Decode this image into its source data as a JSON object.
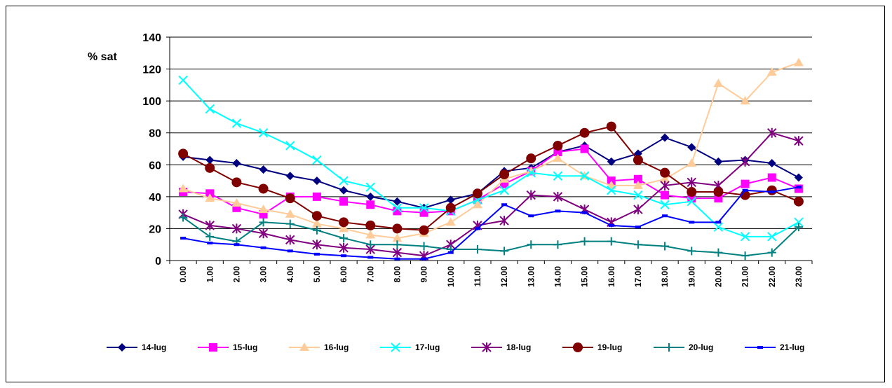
{
  "chart_data": {
    "type": "line",
    "title": "",
    "xlabel": "",
    "ylabel": "% sat",
    "ylim": [
      0,
      140
    ],
    "yticks": [
      0,
      20,
      40,
      60,
      80,
      100,
      120,
      140
    ],
    "grid": "horizontal",
    "legend_position": "bottom",
    "categories": [
      "0.00",
      "1.00",
      "2.00",
      "3.00",
      "4.00",
      "5.00",
      "6.00",
      "7.00",
      "8.00",
      "9.00",
      "10.00",
      "11.00",
      "12.00",
      "13.00",
      "14.00",
      "15.00",
      "16.00",
      "17.00",
      "18.00",
      "19.00",
      "20.00",
      "21.00",
      "22.00",
      "23.00"
    ],
    "series": [
      {
        "name": "14-lug",
        "color": "#000080",
        "marker": "diamond",
        "values": [
          65,
          63,
          61,
          57,
          53,
          50,
          44,
          40,
          37,
          33,
          38,
          42,
          56,
          58,
          68,
          72,
          62,
          67,
          77,
          71,
          62,
          63,
          61,
          52
        ]
      },
      {
        "name": "15-lug",
        "color": "#FF00FF",
        "marker": "square",
        "values": [
          43,
          42,
          33,
          29,
          40,
          40,
          37,
          35,
          31,
          30,
          31,
          38,
          48,
          56,
          68,
          70,
          50,
          51,
          41,
          39,
          39,
          48,
          52,
          45
        ]
      },
      {
        "name": "16-lug",
        "color": "#FFCC99",
        "marker": "triangle",
        "values": [
          45,
          39,
          36,
          32,
          29,
          23,
          20,
          16,
          14,
          17,
          24,
          35,
          51,
          56,
          64,
          53,
          47,
          47,
          51,
          61,
          111,
          100,
          118,
          124
        ]
      },
      {
        "name": "17-lug",
        "color": "#00FFFF",
        "marker": "x",
        "values": [
          113,
          95,
          86,
          80,
          72,
          63,
          50,
          46,
          33,
          33,
          31,
          38,
          44,
          55,
          53,
          53,
          44,
          41,
          35,
          37,
          21,
          15,
          15,
          24
        ]
      },
      {
        "name": "18-lug",
        "color": "#800080",
        "marker": "star",
        "values": [
          29,
          22,
          20,
          17,
          13,
          10,
          8,
          7,
          5,
          3,
          10,
          22,
          25,
          41,
          40,
          32,
          24,
          32,
          47,
          49,
          47,
          62,
          80,
          75
        ]
      },
      {
        "name": "19-lug",
        "color": "#800000",
        "marker": "circle",
        "values": [
          67,
          58,
          49,
          45,
          39,
          28,
          24,
          22,
          20,
          19,
          33,
          42,
          54,
          64,
          72,
          80,
          84,
          63,
          55,
          43,
          43,
          41,
          44,
          37
        ]
      },
      {
        "name": "20-lug",
        "color": "#008080",
        "marker": "plus",
        "values": [
          27,
          15,
          12,
          24,
          23,
          19,
          14,
          10,
          10,
          9,
          7,
          7,
          6,
          10,
          10,
          12,
          12,
          10,
          9,
          6,
          5,
          3,
          5,
          21
        ]
      },
      {
        "name": "21-lug",
        "color": "#0000FF",
        "marker": "dash",
        "values": [
          14,
          11,
          10,
          8,
          6,
          4,
          3,
          2,
          1,
          1,
          5,
          20,
          35,
          28,
          31,
          30,
          22,
          21,
          28,
          24,
          24,
          44,
          43,
          46
        ]
      }
    ]
  }
}
